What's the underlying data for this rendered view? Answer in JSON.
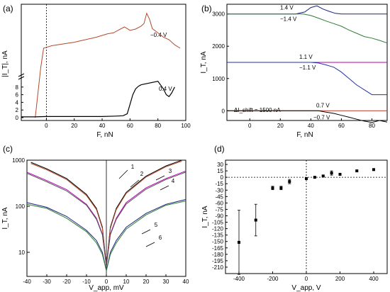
{
  "chart_data": [
    {
      "panel": "(a)",
      "type": "line",
      "xlabel": "F, nN",
      "ylabel": "|I_T|, nA",
      "xlim": [
        -18,
        100
      ],
      "x_ticks": [
        "0",
        "20",
        "40",
        "60",
        "80",
        "100"
      ],
      "y_ticks": [
        "0",
        "2",
        "4",
        "6",
        "8"
      ],
      "dashed_vertical_at_x": 0,
      "axis_break": true,
      "series": [
        {
          "name": "−0.4 V",
          "color": "#b34a2a",
          "region": "upper",
          "x": [
            -8,
            -4,
            -2,
            0,
            4,
            8,
            12,
            16,
            20,
            24,
            28,
            32,
            36,
            40,
            44,
            48,
            52,
            56,
            60,
            64,
            68,
            70,
            72,
            74,
            76,
            80,
            84,
            88,
            92,
            96
          ],
          "y_rel": [
            0.0,
            0.05,
            0.5,
            0.52,
            0.56,
            0.58,
            0.6,
            0.62,
            0.64,
            0.67,
            0.7,
            0.73,
            0.76,
            0.8,
            0.84,
            0.86,
            0.93,
            1.0,
            0.92,
            0.95,
            1.02,
            1.08,
            1.32,
            1.18,
            0.96,
            0.86,
            0.76,
            0.7,
            0.58,
            0.5
          ]
        },
        {
          "name": "0.4 V",
          "color": "#000000",
          "region": "lower",
          "x": [
            -18,
            -8,
            0,
            10,
            20,
            30,
            40,
            50,
            55,
            58,
            60,
            62,
            64,
            66,
            68,
            80,
            84,
            86,
            88,
            90,
            92
          ],
          "y": [
            0.2,
            0.2,
            0.3,
            0.3,
            0.3,
            0.3,
            0.3,
            0.4,
            0.5,
            1.0,
            3.5,
            6.0,
            7.5,
            8.2,
            8.6,
            9.5,
            7.5,
            6.0,
            5.5,
            6.5,
            8.0
          ]
        }
      ],
      "labels": {
        "neg": "−0.4 V",
        "pos": "0.4 V"
      }
    },
    {
      "panel": "(b)",
      "type": "line",
      "xlabel": "F, nN",
      "ylabel": "I_T, nA",
      "xlim": [
        -15,
        90
      ],
      "ylim": [
        -300,
        3300
      ],
      "x_ticks": [
        0,
        20,
        40,
        60,
        80
      ],
      "y_ticks": [
        0,
        1000,
        2000,
        3000
      ],
      "annotation": "ΔI_shift = 1500 nA",
      "series": [
        {
          "name": "1.4 V",
          "color": "#1a237e",
          "x": [
            -15,
            30,
            36,
            40,
            44,
            48,
            52,
            56,
            60,
            90
          ],
          "y": [
            3000,
            3000,
            3060,
            3200,
            3250,
            3150,
            3080,
            3020,
            3000,
            3000
          ]
        },
        {
          "name": "−1.4 V",
          "color": "#2e7d32",
          "x": [
            -15,
            35,
            40,
            45,
            50,
            55,
            60,
            65,
            70,
            75,
            80,
            85,
            90
          ],
          "y": [
            3000,
            3000,
            2950,
            2870,
            2780,
            2700,
            2620,
            2500,
            2400,
            2300,
            2250,
            2180,
            2100
          ]
        },
        {
          "name": "1.1 V",
          "color": "#b400b4",
          "x": [
            -15,
            90
          ],
          "y": [
            1500,
            1500
          ]
        },
        {
          "name": "−1.1 V",
          "color": "#2233aa",
          "x": [
            -15,
            40,
            45,
            50,
            55,
            60,
            65,
            70,
            75,
            80,
            90
          ],
          "y": [
            1500,
            1500,
            1480,
            1420,
            1350,
            1200,
            1000,
            800,
            650,
            500,
            500
          ]
        },
        {
          "name": "0.7 V",
          "color": "#c0392b",
          "x": [
            -15,
            90
          ],
          "y": [
            0,
            0
          ]
        },
        {
          "name": "−0.7 V",
          "color": "#000000",
          "x": [
            -15,
            45,
            50,
            55,
            60,
            65,
            70,
            75,
            80,
            85,
            90
          ],
          "y": [
            0,
            0,
            -40,
            -80,
            -140,
            -200,
            -260,
            -320,
            -360,
            -300,
            -350
          ]
        }
      ]
    },
    {
      "panel": "(c)",
      "type": "line",
      "xlabel": "V_app, mV",
      "ylabel": "I_T, nA",
      "xlim": [
        -40,
        40
      ],
      "yscale": "log",
      "ylim": [
        3,
        1000
      ],
      "x_ticks": [
        -40,
        -30,
        -20,
        -10,
        0,
        10,
        20,
        30,
        40
      ],
      "y_ticks": [
        10,
        100,
        1000
      ],
      "curve_labels": [
        "1",
        "2",
        "3",
        "4",
        "5",
        "6"
      ],
      "series": [
        {
          "color": "#000000",
          "x": [
            -38,
            -30,
            -20,
            -10,
            -5,
            -2,
            0,
            2,
            5,
            10,
            20,
            30,
            38
          ],
          "y": [
            900,
            650,
            400,
            180,
            90,
            35,
            5,
            35,
            90,
            200,
            450,
            750,
            1000
          ]
        },
        {
          "color": "#b34a2a",
          "x": [
            -38,
            -30,
            -20,
            -10,
            -5,
            -2,
            0,
            2,
            5,
            10,
            20,
            30,
            38
          ],
          "y": [
            850,
            620,
            380,
            170,
            85,
            33,
            5,
            33,
            85,
            190,
            430,
            720,
            950
          ]
        },
        {
          "color": "#b400b4",
          "x": [
            -40,
            -30,
            -20,
            -10,
            -5,
            -2,
            0,
            2,
            5,
            10,
            20,
            30,
            40
          ],
          "y": [
            550,
            360,
            230,
            110,
            55,
            25,
            5,
            25,
            55,
            120,
            250,
            400,
            580
          ]
        },
        {
          "color": "#555555",
          "x": [
            -40,
            -30,
            -20,
            -10,
            -5,
            -2,
            0,
            2,
            5,
            10,
            20,
            30,
            40
          ],
          "y": [
            520,
            340,
            215,
            105,
            52,
            24,
            5,
            24,
            52,
            112,
            235,
            380,
            550
          ]
        },
        {
          "color": "#1a237e",
          "x": [
            -40,
            -30,
            -20,
            -10,
            -5,
            -2,
            0,
            2,
            5,
            10,
            20,
            30,
            40
          ],
          "y": [
            120,
            95,
            60,
            30,
            18,
            10,
            4,
            10,
            18,
            35,
            70,
            110,
            140
          ]
        },
        {
          "color": "#2e7d32",
          "x": [
            -40,
            -30,
            -20,
            -10,
            -5,
            -2,
            0,
            2,
            5,
            10,
            20,
            30,
            40
          ],
          "y": [
            110,
            90,
            55,
            28,
            16,
            9,
            4,
            9,
            16,
            32,
            65,
            105,
            130
          ]
        }
      ]
    },
    {
      "panel": "(d)",
      "type": "scatter",
      "xlabel": "V_app, V",
      "ylabel": "I_T, nA",
      "xlim": [
        -480,
        480
      ],
      "ylim": [
        -225,
        40
      ],
      "x_ticks": [
        -400,
        -200,
        0,
        200,
        400
      ],
      "y_ticks": [
        30,
        15,
        0,
        -15,
        -30,
        -45,
        -60,
        -75,
        -90,
        -105,
        -120,
        -135,
        -150,
        -165,
        -180,
        -195,
        -210
      ],
      "dashed_zero_lines": true,
      "points": [
        {
          "x": -400,
          "y": -152,
          "err": 75
        },
        {
          "x": -300,
          "y": -100,
          "err": 37
        },
        {
          "x": -200,
          "y": -25,
          "err": 4
        },
        {
          "x": -150,
          "y": -25,
          "err": 4
        },
        {
          "x": -100,
          "y": -10,
          "err": 5
        },
        {
          "x": 0,
          "y": -3,
          "err": 1
        },
        {
          "x": 50,
          "y": 0,
          "err": 1
        },
        {
          "x": 100,
          "y": 3,
          "err": 2
        },
        {
          "x": 150,
          "y": 10,
          "err": 5
        },
        {
          "x": 200,
          "y": 7,
          "err": 2
        },
        {
          "x": 300,
          "y": 15,
          "err": 2
        },
        {
          "x": 400,
          "y": 18,
          "err": 2
        }
      ]
    }
  ]
}
